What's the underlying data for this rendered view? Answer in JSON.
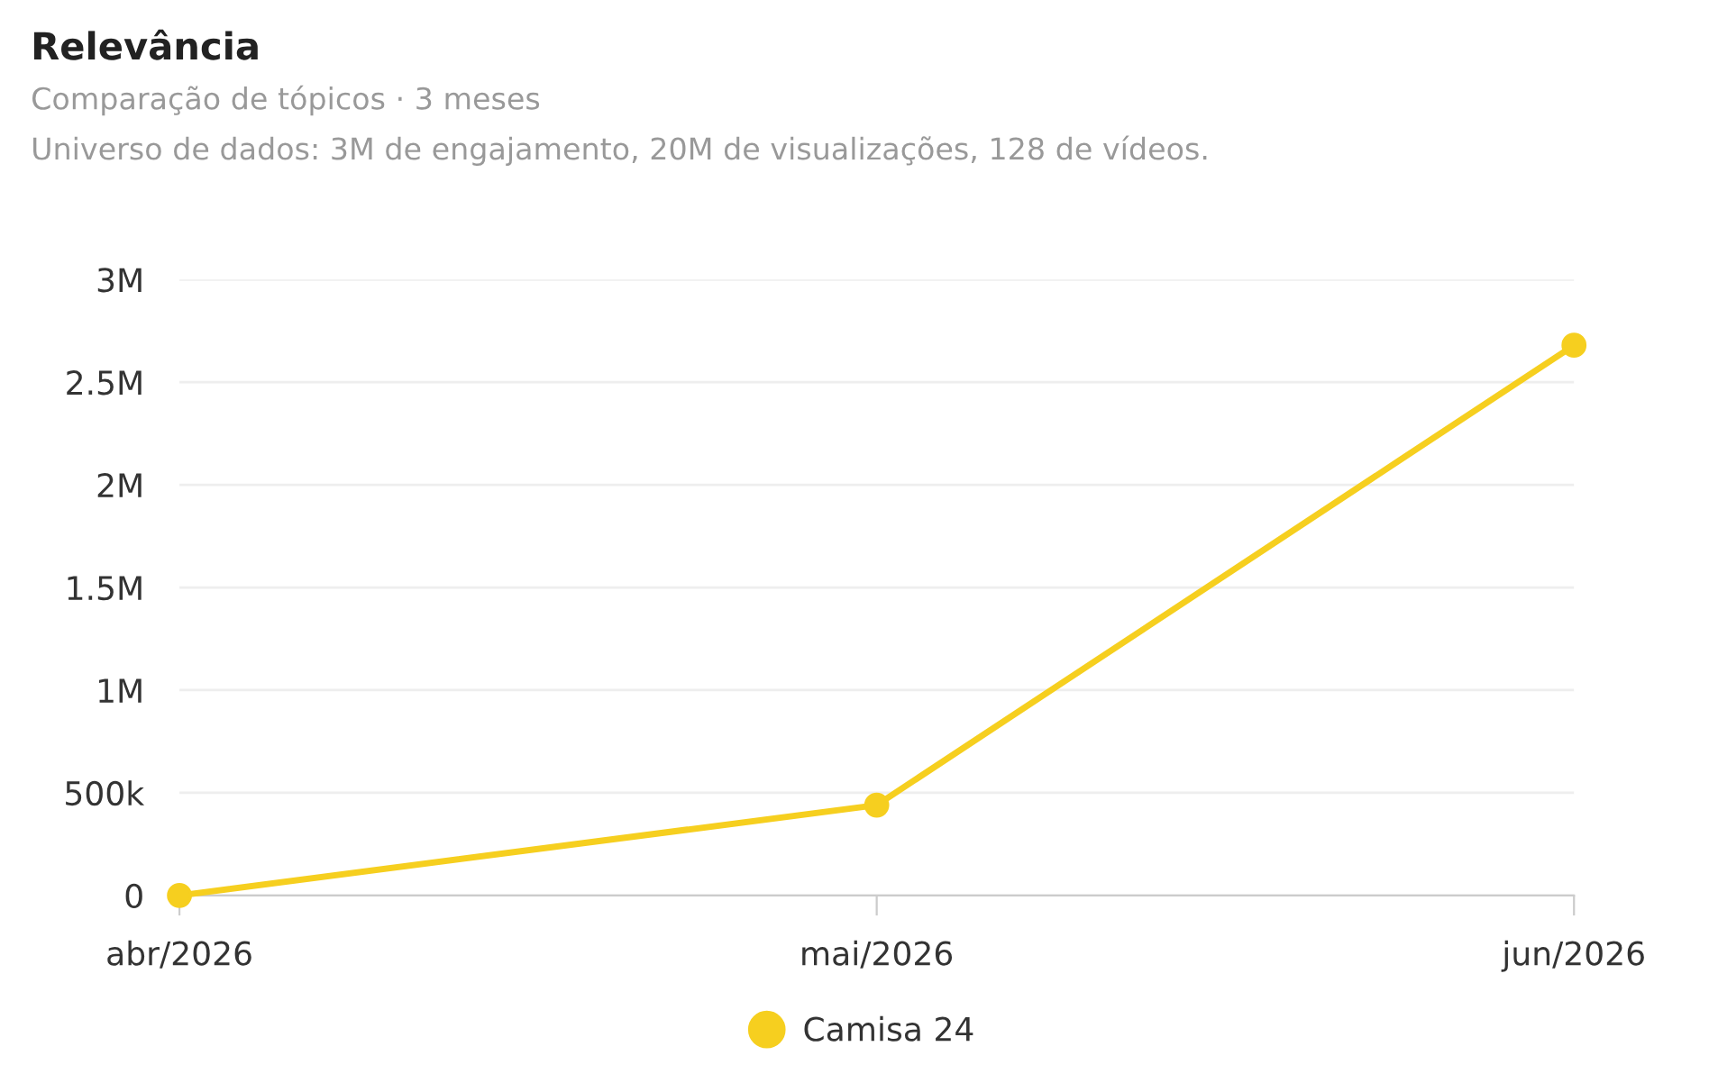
{
  "chart_data": {
    "type": "line",
    "title": "Relevância",
    "subtitle": "Comparação de tópicos · 3 meses",
    "annotations": [
      "Universo de dados: 3M de engajamento, 20M de visualizações, 128 de vídeos."
    ],
    "categories": [
      "abr/2026",
      "mai/2026",
      "jun/2026"
    ],
    "series": [
      {
        "name": "Camisa 24",
        "color": "#f6cf1f",
        "values": [
          0,
          440000,
          2680000
        ]
      }
    ],
    "ylim": [
      0,
      3000000
    ],
    "yticks": [
      0,
      {
        "value": 500000,
        "label": "500k"
      },
      {
        "value": 1000000,
        "label": "1M"
      },
      {
        "value": 1500000,
        "label": "1.5M"
      },
      {
        "value": 2000000,
        "label": "2M"
      },
      {
        "value": 2500000,
        "label": "2.5M"
      },
      {
        "value": 3000000,
        "label": "3M"
      }
    ],
    "grid": "y",
    "legend": "bottom",
    "marker": "circle",
    "line_style": "solid"
  }
}
